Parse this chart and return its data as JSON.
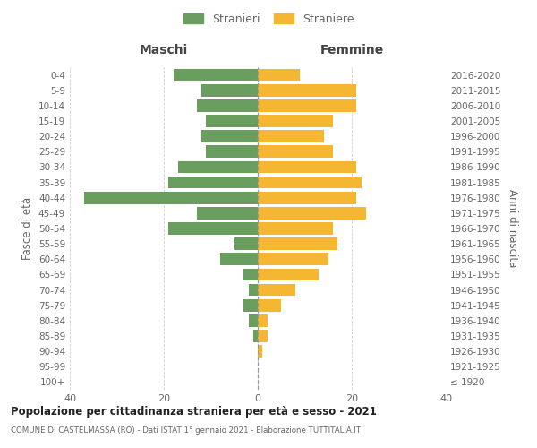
{
  "age_groups": [
    "100+",
    "95-99",
    "90-94",
    "85-89",
    "80-84",
    "75-79",
    "70-74",
    "65-69",
    "60-64",
    "55-59",
    "50-54",
    "45-49",
    "40-44",
    "35-39",
    "30-34",
    "25-29",
    "20-24",
    "15-19",
    "10-14",
    "5-9",
    "0-4"
  ],
  "birth_years": [
    "≤ 1920",
    "1921-1925",
    "1926-1930",
    "1931-1935",
    "1936-1940",
    "1941-1945",
    "1946-1950",
    "1951-1955",
    "1956-1960",
    "1961-1965",
    "1966-1970",
    "1971-1975",
    "1976-1980",
    "1981-1985",
    "1986-1990",
    "1991-1995",
    "1996-2000",
    "2001-2005",
    "2006-2010",
    "2011-2015",
    "2016-2020"
  ],
  "maschi": [
    0,
    0,
    0,
    1,
    2,
    3,
    2,
    3,
    8,
    5,
    19,
    13,
    37,
    19,
    17,
    11,
    12,
    11,
    13,
    12,
    18
  ],
  "femmine": [
    0,
    0,
    1,
    2,
    2,
    5,
    8,
    13,
    15,
    17,
    16,
    23,
    21,
    22,
    21,
    16,
    14,
    16,
    21,
    21,
    9
  ],
  "maschi_color": "#6a9e5e",
  "femmine_color": "#f5b731",
  "title": "Popolazione per cittadinanza straniera per età e sesso - 2021",
  "subtitle": "COMUNE DI CASTELMASSA (RO) - Dati ISTAT 1° gennaio 2021 - Elaborazione TUTTITALIA.IT",
  "xlabel_left": "Maschi",
  "xlabel_right": "Femmine",
  "ylabel_left": "Fasce di età",
  "ylabel_right": "Anni di nascita",
  "xlim": 40,
  "legend_stranieri": "Stranieri",
  "legend_straniere": "Straniere",
  "bg_color": "#ffffff",
  "grid_color": "#cccccc",
  "bar_height": 0.8,
  "label_color": "#666666",
  "header_color": "#444444"
}
